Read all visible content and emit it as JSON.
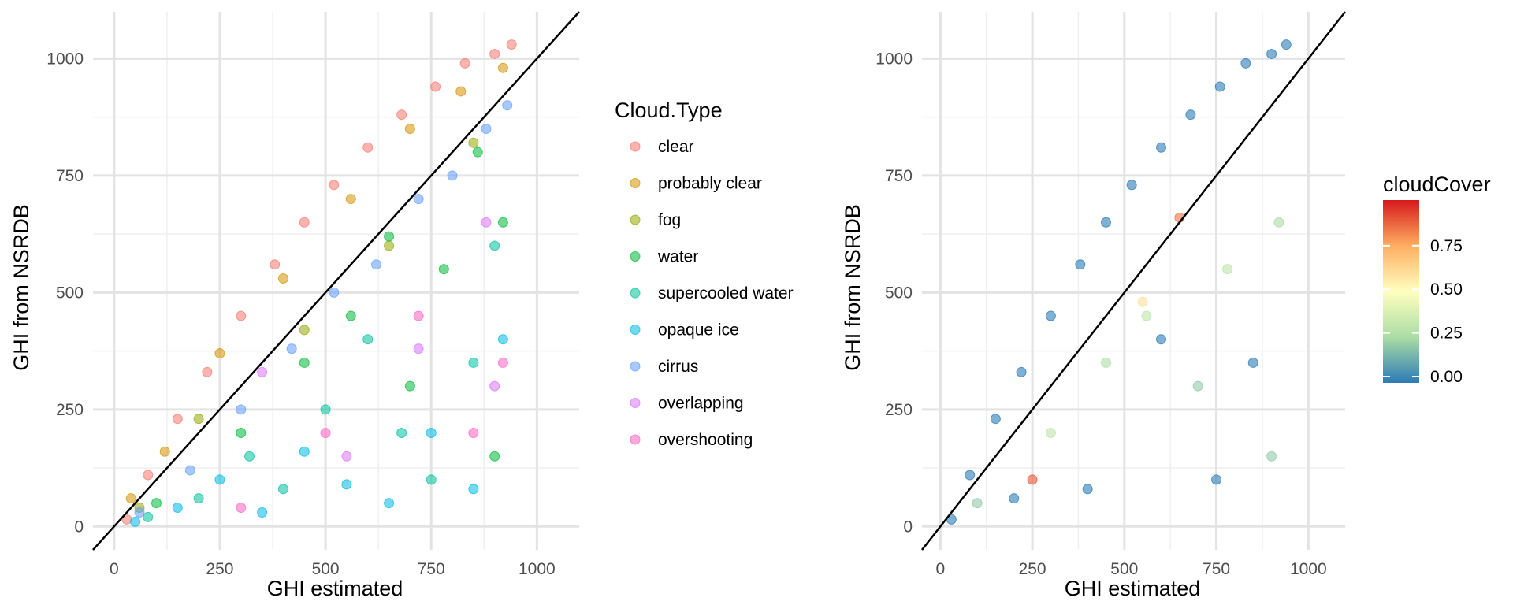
{
  "chart_data": [
    {
      "type": "scatter",
      "xlabel": "GHI estimated",
      "ylabel": "GHI from NSRDB",
      "xlim": [
        -50,
        1100
      ],
      "ylim": [
        -50,
        1100
      ],
      "x_ticks": [
        "0",
        "250",
        "500",
        "750",
        "1000"
      ],
      "y_ticks": [
        "0",
        "250",
        "500",
        "750",
        "1000"
      ],
      "grid": true,
      "reference_line": "y = x",
      "legend_title": "Cloud.Type",
      "legend_position": "right",
      "series": [
        {
          "name": "clear",
          "color": "#F8766D",
          "points": [
            [
              30,
              15
            ],
            [
              80,
              110
            ],
            [
              150,
              230
            ],
            [
              220,
              330
            ],
            [
              300,
              450
            ],
            [
              380,
              560
            ],
            [
              450,
              650
            ],
            [
              520,
              730
            ],
            [
              600,
              810
            ],
            [
              680,
              880
            ],
            [
              760,
              940
            ],
            [
              830,
              990
            ],
            [
              900,
              1010
            ],
            [
              940,
              1030
            ]
          ]
        },
        {
          "name": "probably clear",
          "color": "#D39200",
          "points": [
            [
              40,
              60
            ],
            [
              120,
              160
            ],
            [
              250,
              370
            ],
            [
              400,
              530
            ],
            [
              560,
              700
            ],
            [
              700,
              850
            ],
            [
              820,
              930
            ],
            [
              920,
              980
            ]
          ]
        },
        {
          "name": "fog",
          "color": "#93AA00",
          "points": [
            [
              60,
              40
            ],
            [
              200,
              230
            ],
            [
              450,
              420
            ],
            [
              650,
              600
            ],
            [
              850,
              820
            ]
          ]
        },
        {
          "name": "water",
          "color": "#00BA38",
          "points": [
            [
              100,
              50
            ],
            [
              300,
              200
            ],
            [
              450,
              350
            ],
            [
              560,
              450
            ],
            [
              650,
              620
            ],
            [
              700,
              300
            ],
            [
              780,
              550
            ],
            [
              860,
              800
            ],
            [
              900,
              150
            ],
            [
              920,
              650
            ]
          ]
        },
        {
          "name": "supercooled water",
          "color": "#00C19F",
          "points": [
            [
              80,
              20
            ],
            [
              200,
              60
            ],
            [
              320,
              150
            ],
            [
              400,
              80
            ],
            [
              500,
              250
            ],
            [
              600,
              400
            ],
            [
              680,
              200
            ],
            [
              750,
              100
            ],
            [
              850,
              350
            ],
            [
              900,
              600
            ]
          ]
        },
        {
          "name": "opaque ice",
          "color": "#00B9E3",
          "points": [
            [
              50,
              10
            ],
            [
              150,
              40
            ],
            [
              250,
              100
            ],
            [
              350,
              30
            ],
            [
              450,
              160
            ],
            [
              550,
              90
            ],
            [
              650,
              50
            ],
            [
              750,
              200
            ],
            [
              850,
              80
            ],
            [
              920,
              400
            ]
          ]
        },
        {
          "name": "cirrus",
          "color": "#619CFF",
          "points": [
            [
              60,
              30
            ],
            [
              180,
              120
            ],
            [
              300,
              250
            ],
            [
              420,
              380
            ],
            [
              520,
              500
            ],
            [
              620,
              560
            ],
            [
              720,
              700
            ],
            [
              800,
              750
            ],
            [
              880,
              850
            ],
            [
              930,
              900
            ]
          ]
        },
        {
          "name": "overlapping",
          "color": "#DB72FB",
          "points": [
            [
              350,
              330
            ],
            [
              550,
              150
            ],
            [
              720,
              380
            ],
            [
              880,
              650
            ],
            [
              900,
              300
            ]
          ]
        },
        {
          "name": "overshooting",
          "color": "#FF61C3",
          "points": [
            [
              300,
              40
            ],
            [
              500,
              200
            ],
            [
              720,
              450
            ],
            [
              850,
              200
            ],
            [
              920,
              350
            ]
          ]
        }
      ]
    },
    {
      "type": "scatter",
      "xlabel": "GHI estimated",
      "ylabel": "GHI from NSRDB",
      "xlim": [
        -50,
        1100
      ],
      "ylim": [
        -50,
        1100
      ],
      "x_ticks": [
        "0",
        "250",
        "500",
        "750",
        "1000"
      ],
      "y_ticks": [
        "0",
        "250",
        "500",
        "750",
        "1000"
      ],
      "grid": true,
      "reference_line": "y = x",
      "legend_title": "cloudCover",
      "legend_position": "right",
      "colorbar_ticks": [
        "0.00",
        "0.25",
        "0.50",
        "0.75"
      ],
      "colorbar_range": [
        0,
        1
      ],
      "colorbar_colors": [
        "#2C7BB6",
        "#ABDDA4",
        "#FFFFBF",
        "#FDAE61",
        "#D7191C"
      ],
      "points": [
        [
          30,
          15,
          0
        ],
        [
          80,
          110,
          0
        ],
        [
          150,
          230,
          0
        ],
        [
          220,
          330,
          0
        ],
        [
          300,
          450,
          0
        ],
        [
          380,
          560,
          0
        ],
        [
          450,
          650,
          0
        ],
        [
          520,
          730,
          0
        ],
        [
          600,
          810,
          0
        ],
        [
          680,
          880,
          0
        ],
        [
          760,
          940,
          0
        ],
        [
          830,
          990,
          0
        ],
        [
          900,
          1010,
          0
        ],
        [
          940,
          1030,
          0
        ],
        [
          100,
          50,
          0.2
        ],
        [
          300,
          200,
          0.3
        ],
        [
          450,
          350,
          0.25
        ],
        [
          560,
          450,
          0.3
        ],
        [
          700,
          300,
          0.2
        ],
        [
          780,
          550,
          0.3
        ],
        [
          900,
          150,
          0.2
        ],
        [
          920,
          650,
          0.25
        ],
        [
          200,
          60,
          0
        ],
        [
          400,
          80,
          0
        ],
        [
          600,
          400,
          0
        ],
        [
          750,
          100,
          0
        ],
        [
          850,
          350,
          0
        ],
        [
          250,
          100,
          0.9
        ],
        [
          650,
          660,
          0.85
        ],
        [
          550,
          480,
          0.6
        ]
      ]
    }
  ]
}
